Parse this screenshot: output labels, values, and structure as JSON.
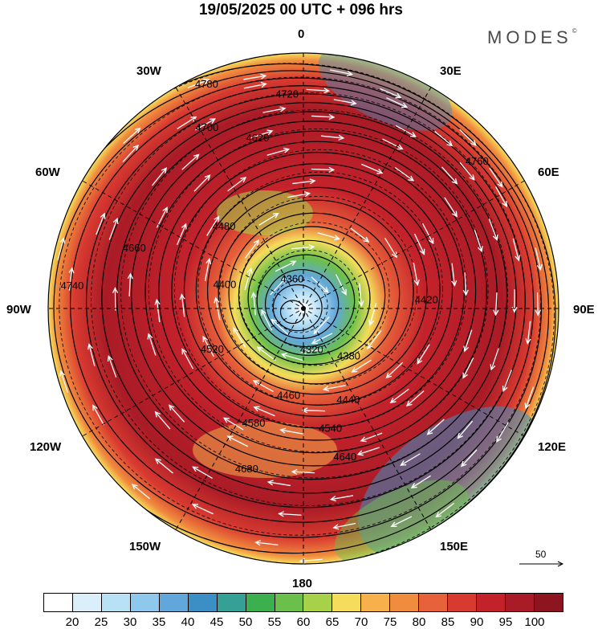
{
  "title": "19/05/2025  00 UTC  + 096 hrs",
  "brand": "MODES",
  "brand_mark": "©",
  "lon_labels": {
    "top": "0",
    "top_right": "30E",
    "upper_right": "60E",
    "right": "90E",
    "lower_right": "120E",
    "bottom_right": "150E",
    "bottom": "180",
    "bottom_left": "150W",
    "lower_left": "120W",
    "left": "90W",
    "upper_left": "60W",
    "top_left": "30W"
  },
  "vector_scale_label": "50",
  "colorbar": {
    "colors": [
      "#ffffff",
      "#dbeffb",
      "#b9e1f6",
      "#8ec8ec",
      "#62a7d9",
      "#3b8fc4",
      "#35a095",
      "#3cb04e",
      "#6bc04c",
      "#a8d14a",
      "#f4dd5a",
      "#f6b14c",
      "#f08c3e",
      "#e7613a",
      "#d83a30",
      "#c4222b",
      "#a91b26",
      "#8d1520"
    ],
    "ticks": [
      "20",
      "25",
      "30",
      "35",
      "40",
      "45",
      "50",
      "55",
      "60",
      "65",
      "70",
      "75",
      "80",
      "85",
      "90",
      "95",
      "100"
    ]
  },
  "contours": [
    {
      "label": "4320",
      "lon": "175E",
      "offset": 0.2
    },
    {
      "label": "4360",
      "lon": "15W",
      "offset": 0.11
    },
    {
      "label": "4380",
      "lon": "150E",
      "offset": 0.28
    },
    {
      "label": "4400",
      "lon": "85W",
      "offset": 0.35
    },
    {
      "label": "4420",
      "lon": "95E",
      "offset": 0.42
    },
    {
      "label": "4440",
      "lon": "165E",
      "offset": 0.45
    },
    {
      "label": "4460",
      "lon": "165W",
      "offset": 0.43
    },
    {
      "label": "4480",
      "lon": "55W",
      "offset": 0.44
    },
    {
      "label": "4520",
      "lon": "120W",
      "offset": 0.47
    },
    {
      "label": "4540",
      "lon": "175E",
      "offset": 0.55
    },
    {
      "label": "4580",
      "lon": "155W",
      "offset": 0.58
    },
    {
      "label": "4620",
      "lon": "20W",
      "offset": 0.65
    },
    {
      "label": "4640",
      "lon": "170E",
      "offset": 0.66
    },
    {
      "label": "4660",
      "lon": "75W",
      "offset": 0.71
    },
    {
      "label": "4680",
      "lon": "160W",
      "offset": 0.73
    },
    {
      "label": "4700",
      "lon": "30W",
      "offset": 0.78
    },
    {
      "label": "4720",
      "lon": "5W",
      "offset": 0.82
    },
    {
      "label": "4740",
      "lon": "85W",
      "offset": 0.88
    },
    {
      "label": "4760",
      "lon": "50E",
      "offset": 0.89
    },
    {
      "label": "4780",
      "lon": "20W",
      "offset": 0.96
    }
  ]
}
